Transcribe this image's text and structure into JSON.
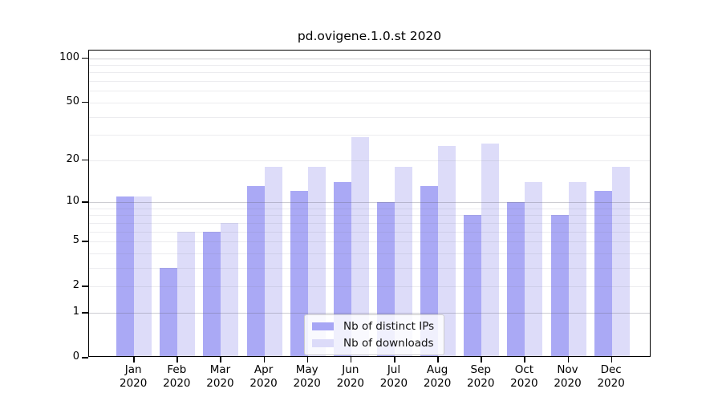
{
  "title": "pd.ovigene.1.0.st 2020",
  "chart_data": {
    "type": "bar",
    "title": "pd.ovigene.1.0.st 2020",
    "categories": [
      "Jan",
      "Feb",
      "Mar",
      "Apr",
      "May",
      "Jun",
      "Jul",
      "Aug",
      "Sep",
      "Oct",
      "Nov",
      "Dec"
    ],
    "year": "2020",
    "series": [
      {
        "name": "Nb of distinct IPs",
        "color": "#a7a6f5",
        "values": [
          11,
          3,
          6,
          13,
          12,
          14,
          10,
          13,
          8,
          10,
          8,
          12
        ]
      },
      {
        "name": "Nb of downloads",
        "color": "#dcdbf9",
        "values": [
          11,
          6,
          7,
          18,
          18,
          29,
          18,
          25,
          26,
          14,
          14,
          18
        ]
      }
    ],
    "xlabel": "",
    "ylabel": "",
    "yscale": "log1p",
    "ylim": [
      0,
      115
    ],
    "yticks": [
      0,
      1,
      2,
      5,
      10,
      20,
      50,
      100
    ],
    "grid_major": [
      1,
      10,
      100
    ],
    "grid_minor": [
      2,
      3,
      4,
      5,
      6,
      7,
      8,
      9,
      20,
      30,
      40,
      50,
      60,
      70,
      80,
      90
    ],
    "grid": "on",
    "legend_position": "lower-center"
  }
}
